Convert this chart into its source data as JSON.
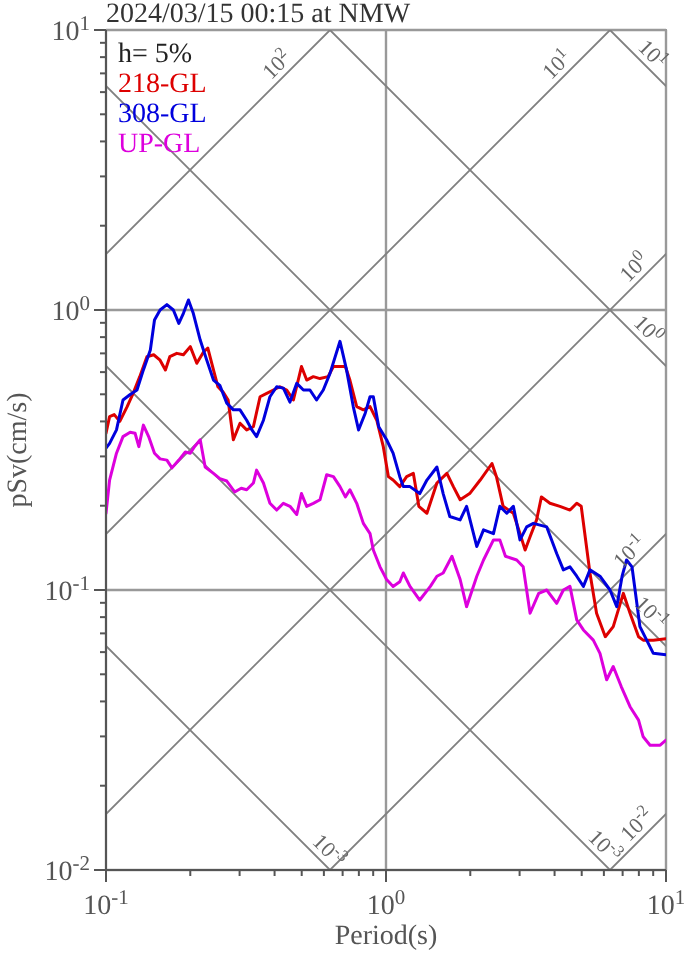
{
  "chart_data": {
    "type": "line",
    "title": "2024/03/15 00:15 at NMW",
    "xlabel": "Period(s)",
    "ylabel": "pSv(cm/s)",
    "log": "xy",
    "grid": true,
    "legend": "top left",
    "xlim": [
      0.1,
      10
    ],
    "ylim": [
      0.01,
      10
    ],
    "xticks": [
      {
        "value": 0.1,
        "label": "10$^{-1}$"
      },
      {
        "value": 0.2,
        "label": null
      },
      {
        "value": 0.3,
        "label": null
      },
      {
        "value": 0.4,
        "label": null
      },
      {
        "value": 0.5,
        "label": null
      },
      {
        "value": 0.6,
        "label": null
      },
      {
        "value": 0.7,
        "label": null
      },
      {
        "value": 0.8,
        "label": null
      },
      {
        "value": 0.9,
        "label": null
      },
      {
        "value": 1,
        "label": "10$^{0}$"
      },
      {
        "value": 2,
        "label": null
      },
      {
        "value": 3,
        "label": null
      },
      {
        "value": 4,
        "label": null
      },
      {
        "value": 5,
        "label": null
      },
      {
        "value": 6,
        "label": null
      },
      {
        "value": 7,
        "label": null
      },
      {
        "value": 8,
        "label": null
      },
      {
        "value": 9,
        "label": null
      },
      {
        "value": 10,
        "label": "10$^{1}$"
      }
    ],
    "yticks": [
      {
        "value": 0.01,
        "label": "10$^{-2}$"
      },
      {
        "value": 0.02,
        "label": null
      },
      {
        "value": 0.03,
        "label": null
      },
      {
        "value": 0.04,
        "label": null
      },
      {
        "value": 0.05,
        "label": null
      },
      {
        "value": 0.06,
        "label": null
      },
      {
        "value": 0.07,
        "label": null
      },
      {
        "value": 0.08,
        "label": null
      },
      {
        "value": 0.09,
        "label": null
      },
      {
        "value": 0.1,
        "label": "10$^{-1}$"
      },
      {
        "value": 0.2,
        "label": null
      },
      {
        "value": 0.3,
        "label": null
      },
      {
        "value": 0.4,
        "label": null
      },
      {
        "value": 0.5,
        "label": null
      },
      {
        "value": 0.6,
        "label": null
      },
      {
        "value": 0.7,
        "label": null
      },
      {
        "value": 0.8,
        "label": null
      },
      {
        "value": 0.9,
        "label": null
      },
      {
        "value": 1,
        "label": "10$^{0}$"
      },
      {
        "value": 2,
        "label": null
      },
      {
        "value": 3,
        "label": null
      },
      {
        "value": 4,
        "label": null
      },
      {
        "value": 5,
        "label": null
      },
      {
        "value": 6,
        "label": null
      },
      {
        "value": 7,
        "label": null
      },
      {
        "value": 8,
        "label": null
      },
      {
        "value": 9,
        "label": null
      },
      {
        "value": 10,
        "label": "10$^{1}$"
      }
    ],
    "annotations": [
      "h= 5%",
      {
        "text": "10$^{2}$",
        "x": 0.44,
        "y": 6.97
      },
      {
        "text": "10$^{1}$",
        "x": 4.4,
        "y": 6.97
      },
      {
        "text": "10$^{1}$",
        "x": 8.3,
        "y": 7.6
      },
      {
        "text": "10$^{0}$",
        "x": 8.3,
        "y": 1.316
      },
      {
        "text": "10$^{0}$",
        "x": 8.0,
        "y": 0.789
      },
      {
        "text": "10$^{-1}$",
        "x": 8.0,
        "y": 0.1268
      },
      {
        "text": "10$^{-1}$",
        "x": 8.2,
        "y": 0.077
      },
      {
        "text": "10$^{-3}$",
        "x": 0.58,
        "y": 0.01088
      },
      {
        "text": "10$^{-3}$",
        "x": 5.6,
        "y": 0.01127
      },
      {
        "text": "10$^{-2}$",
        "x": 8.5,
        "y": 0.01347
      }
    ],
    "series": [
      {
        "type": "line",
        "color": "#808080",
        "x": [
          0.1,
          0.631
        ],
        "values": [
          1.585,
          10
        ]
      },
      {
        "type": "line",
        "color": "#808080",
        "x": [
          0.1,
          6.31
        ],
        "values": [
          0.1585,
          10
        ]
      },
      {
        "type": "line",
        "color": "#808080",
        "x": [
          0.1,
          10
        ],
        "values": [
          0.01585,
          1.585
        ]
      },
      {
        "type": "line",
        "color": "#808080",
        "x": [
          0.631,
          10
        ],
        "values": [
          0.01,
          0.1585
        ]
      },
      {
        "type": "line",
        "color": "#808080",
        "x": [
          6.31,
          10
        ],
        "values": [
          0.01,
          0.01585
        ]
      },
      {
        "type": "line",
        "color": "#808080",
        "x": [
          6.31,
          10
        ],
        "values": [
          10,
          6.31
        ]
      },
      {
        "type": "line",
        "color": "#808080",
        "x": [
          0.631,
          10
        ],
        "values": [
          10,
          0.631
        ]
      },
      {
        "type": "line",
        "color": "#808080",
        "x": [
          0.1,
          10
        ],
        "values": [
          6.31,
          0.0631
        ]
      },
      {
        "type": "line",
        "color": "#808080",
        "x": [
          0.1,
          6.31
        ],
        "values": [
          0.631,
          0.01
        ]
      },
      {
        "type": "line",
        "color": "#808080",
        "x": [
          0.1,
          0.631
        ],
        "values": [
          0.0631,
          0.01
        ]
      },
      {
        "name": "218-GL",
        "color": "#dd0000",
        "x": [
          0.1,
          0.103,
          0.107,
          0.112,
          0.119,
          0.125,
          0.132,
          0.14,
          0.148,
          0.156,
          0.163,
          0.169,
          0.179,
          0.189,
          0.2,
          0.211,
          0.223,
          0.231,
          0.242,
          0.251,
          0.262,
          0.273,
          0.285,
          0.301,
          0.318,
          0.336,
          0.355,
          0.375,
          0.396,
          0.418,
          0.442,
          0.467,
          0.499,
          0.521,
          0.55,
          0.581,
          0.621,
          0.649,
          0.716,
          0.743,
          0.786,
          0.83,
          0.877,
          0.927,
          0.978,
          1.02,
          1.06,
          1.12,
          1.185,
          1.252,
          1.31,
          1.4,
          1.52,
          1.65,
          1.74,
          1.84,
          1.99,
          2.17,
          2.39,
          2.48,
          2.62,
          2.85,
          3.01,
          3.14,
          3.27,
          3.45,
          3.59,
          3.85,
          4.18,
          4.54,
          4.8,
          4.98,
          5.35,
          5.65,
          6.07,
          6.48,
          7.04,
          7.44,
          7.98,
          8.29,
          9.01,
          10
        ],
        "values": [
          0.363,
          0.416,
          0.423,
          0.4,
          0.452,
          0.504,
          0.578,
          0.681,
          0.692,
          0.662,
          0.611,
          0.681,
          0.7,
          0.692,
          0.74,
          0.645,
          0.708,
          0.731,
          0.611,
          0.532,
          0.509,
          0.477,
          0.344,
          0.394,
          0.373,
          0.383,
          0.49,
          0.504,
          0.518,
          0.532,
          0.518,
          0.477,
          0.628,
          0.562,
          0.578,
          0.569,
          0.578,
          0.628,
          0.628,
          0.562,
          0.452,
          0.44,
          0.452,
          0.404,
          0.325,
          0.254,
          0.247,
          0.234,
          0.254,
          0.261,
          0.199,
          0.188,
          0.241,
          0.261,
          0.234,
          0.21,
          0.221,
          0.247,
          0.283,
          0.254,
          0.199,
          0.188,
          0.159,
          0.139,
          0.155,
          0.178,
          0.215,
          0.204,
          0.199,
          0.193,
          0.204,
          0.199,
          0.115,
          0.0826,
          0.0681,
          0.074,
          0.0973,
          0.0826,
          0.0681,
          0.0662,
          0.0662,
          0.067
        ]
      },
      {
        "name": "308-GL",
        "color": "#0000dd",
        "x": [
          0.1,
          0.103,
          0.109,
          0.115,
          0.122,
          0.129,
          0.136,
          0.144,
          0.149,
          0.156,
          0.165,
          0.174,
          0.182,
          0.189,
          0.197,
          0.205,
          0.217,
          0.229,
          0.242,
          0.255,
          0.27,
          0.285,
          0.301,
          0.318,
          0.332,
          0.345,
          0.365,
          0.385,
          0.407,
          0.43,
          0.454,
          0.48,
          0.507,
          0.535,
          0.565,
          0.597,
          0.631,
          0.685,
          0.723,
          0.764,
          0.798,
          0.843,
          0.877,
          0.901,
          0.942,
          1.005,
          1.06,
          1.12,
          1.153,
          1.218,
          1.32,
          1.4,
          1.52,
          1.6,
          1.69,
          1.84,
          1.94,
          2.11,
          2.23,
          2.42,
          2.55,
          2.7,
          2.85,
          3.01,
          3.18,
          3.36,
          3.75,
          4.07,
          4.3,
          4.54,
          4.8,
          5.07,
          5.35,
          5.81,
          6.31,
          6.67,
          6.97,
          7.23,
          7.56,
          8.07,
          8.53,
          9.01,
          10
        ],
        "values": [
          0.321,
          0.334,
          0.373,
          0.477,
          0.499,
          0.518,
          0.611,
          0.72,
          0.921,
          1.0,
          1.045,
          1.0,
          0.896,
          0.973,
          1.086,
          0.973,
          0.781,
          0.662,
          0.562,
          0.538,
          0.465,
          0.44,
          0.44,
          0.404,
          0.373,
          0.353,
          0.404,
          0.49,
          0.532,
          0.526,
          0.469,
          0.547,
          0.518,
          0.518,
          0.477,
          0.518,
          0.594,
          0.773,
          0.611,
          0.452,
          0.373,
          0.428,
          0.49,
          0.49,
          0.383,
          0.344,
          0.308,
          0.254,
          0.234,
          0.234,
          0.221,
          0.247,
          0.275,
          0.221,
          0.183,
          0.178,
          0.199,
          0.143,
          0.164,
          0.159,
          0.199,
          0.188,
          0.199,
          0.151,
          0.168,
          0.173,
          0.168,
          0.135,
          0.118,
          0.121,
          0.112,
          0.103,
          0.118,
          0.112,
          0.1,
          0.0872,
          0.112,
          0.128,
          0.121,
          0.074,
          0.0662,
          0.0594,
          0.0587
        ]
      },
      {
        "name": "UP-GL",
        "color": "#dd00dd",
        "x": [
          0.1,
          0.103,
          0.109,
          0.115,
          0.122,
          0.127,
          0.131,
          0.136,
          0.142,
          0.149,
          0.156,
          0.165,
          0.172,
          0.182,
          0.192,
          0.2,
          0.207,
          0.217,
          0.226,
          0.242,
          0.255,
          0.27,
          0.288,
          0.304,
          0.318,
          0.336,
          0.345,
          0.365,
          0.385,
          0.407,
          0.43,
          0.454,
          0.48,
          0.499,
          0.521,
          0.55,
          0.581,
          0.614,
          0.649,
          0.685,
          0.716,
          0.743,
          0.786,
          0.83,
          0.877,
          0.901,
          0.952,
          1.005,
          1.06,
          1.12,
          1.153,
          1.218,
          1.32,
          1.44,
          1.52,
          1.6,
          1.72,
          1.84,
          1.94,
          2.11,
          2.23,
          2.42,
          2.55,
          2.67,
          2.93,
          3.09,
          3.27,
          3.51,
          3.75,
          4.07,
          4.3,
          4.54,
          4.8,
          5.07,
          5.5,
          5.81,
          6.14,
          6.48,
          6.92,
          7.44,
          7.98,
          8.29,
          8.77,
          9.53,
          10
        ],
        "values": [
          0.188,
          0.247,
          0.308,
          0.353,
          0.366,
          0.363,
          0.325,
          0.388,
          0.353,
          0.308,
          0.294,
          0.291,
          0.273,
          0.291,
          0.311,
          0.308,
          0.325,
          0.344,
          0.275,
          0.261,
          0.25,
          0.245,
          0.224,
          0.231,
          0.228,
          0.241,
          0.268,
          0.241,
          0.204,
          0.193,
          0.204,
          0.199,
          0.186,
          0.221,
          0.199,
          0.204,
          0.21,
          0.258,
          0.254,
          0.234,
          0.215,
          0.228,
          0.204,
          0.173,
          0.159,
          0.139,
          0.121,
          0.109,
          0.103,
          0.107,
          0.115,
          0.103,
          0.0921,
          0.103,
          0.112,
          0.115,
          0.132,
          0.109,
          0.0872,
          0.112,
          0.128,
          0.151,
          0.151,
          0.132,
          0.128,
          0.121,
          0.0826,
          0.0973,
          0.1,
          0.0896,
          0.1,
          0.103,
          0.0782,
          0.072,
          0.0662,
          0.0594,
          0.0478,
          0.0533,
          0.0452,
          0.0383,
          0.0343,
          0.0299,
          0.0279,
          0.0279,
          0.0291
        ]
      }
    ]
  }
}
